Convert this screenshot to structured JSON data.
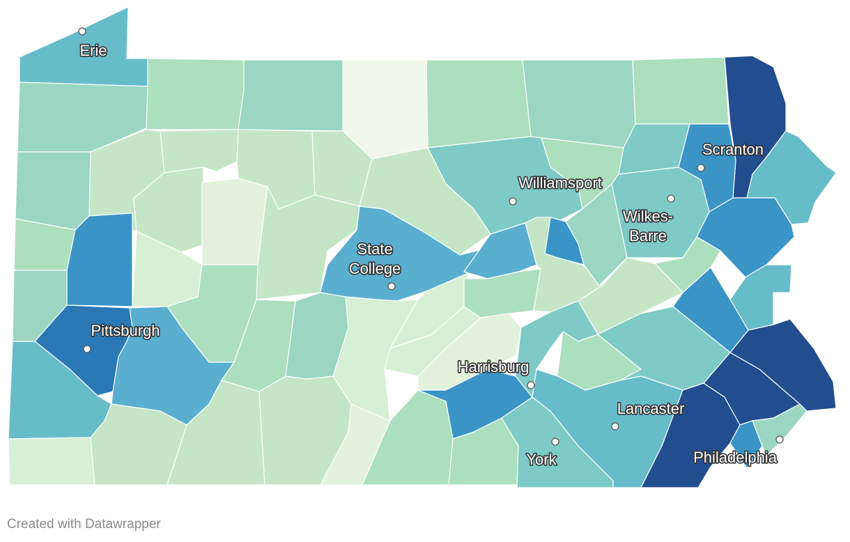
{
  "map": {
    "region": "Pennsylvania",
    "unit": "county",
    "color_scale": [
      "#f0f8ea",
      "#d7efd4",
      "#c4e6c6",
      "#acdfbe",
      "#9ad6c1",
      "#7ecac6",
      "#67bcca",
      "#5aaecf",
      "#3a94c6",
      "#2a78b6",
      "#224d8e"
    ],
    "cities": [
      {
        "id": "erie",
        "label": "Erie"
      },
      {
        "id": "scranton",
        "label": "Scranton"
      },
      {
        "id": "williamsport",
        "label": "Williamsport"
      },
      {
        "id": "wilkes-barre",
        "label": [
          "Wilkes-",
          "Barre"
        ]
      },
      {
        "id": "state-college",
        "label": [
          "State",
          "College"
        ]
      },
      {
        "id": "pittsburgh",
        "label": "Pittsburgh"
      },
      {
        "id": "harrisburg",
        "label": "Harrisburg"
      },
      {
        "id": "lancaster",
        "label": "Lancaster"
      },
      {
        "id": "york",
        "label": "York"
      },
      {
        "id": "philadelphia",
        "label": "Philadelphia"
      }
    ]
  },
  "footer": {
    "credit": "Created with Datawrapper"
  }
}
